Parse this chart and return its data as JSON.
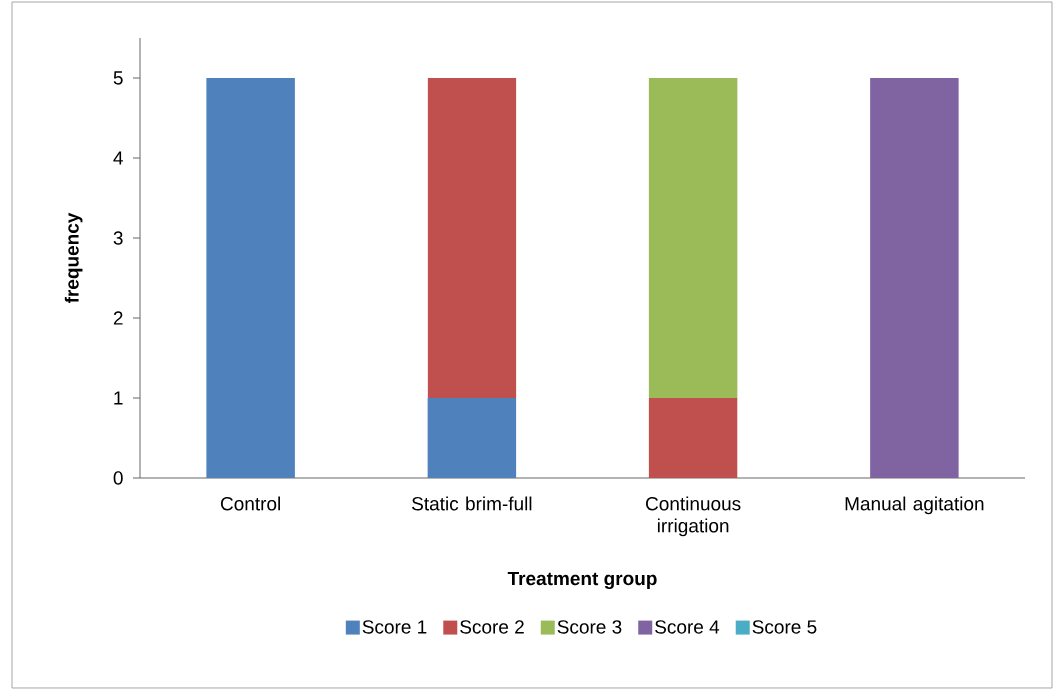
{
  "chart_data": {
    "type": "bar",
    "stacked": true,
    "xlabel": "Treatment group",
    "ylabel": "frequency",
    "categories": [
      "Control",
      "Static brim-full",
      "Continuous irrigation",
      "Manual agitation"
    ],
    "series": [
      {
        "name": "Score 1",
        "color": "#4f81bd",
        "values": [
          5,
          1,
          0,
          0
        ]
      },
      {
        "name": "Score 2",
        "color": "#c0504d",
        "values": [
          0,
          4,
          1,
          0
        ]
      },
      {
        "name": "Score 3",
        "color": "#9bbb59",
        "values": [
          0,
          0,
          4,
          0
        ]
      },
      {
        "name": "Score 4",
        "color": "#8064a2",
        "values": [
          0,
          0,
          0,
          5
        ]
      },
      {
        "name": "Score 5",
        "color": "#4bacc6",
        "values": [
          0,
          0,
          0,
          0
        ]
      }
    ],
    "ylim": [
      0,
      5.5
    ],
    "yticks": [
      0,
      1,
      2,
      3,
      4,
      5
    ],
    "grid": false,
    "legend": "bottom"
  }
}
